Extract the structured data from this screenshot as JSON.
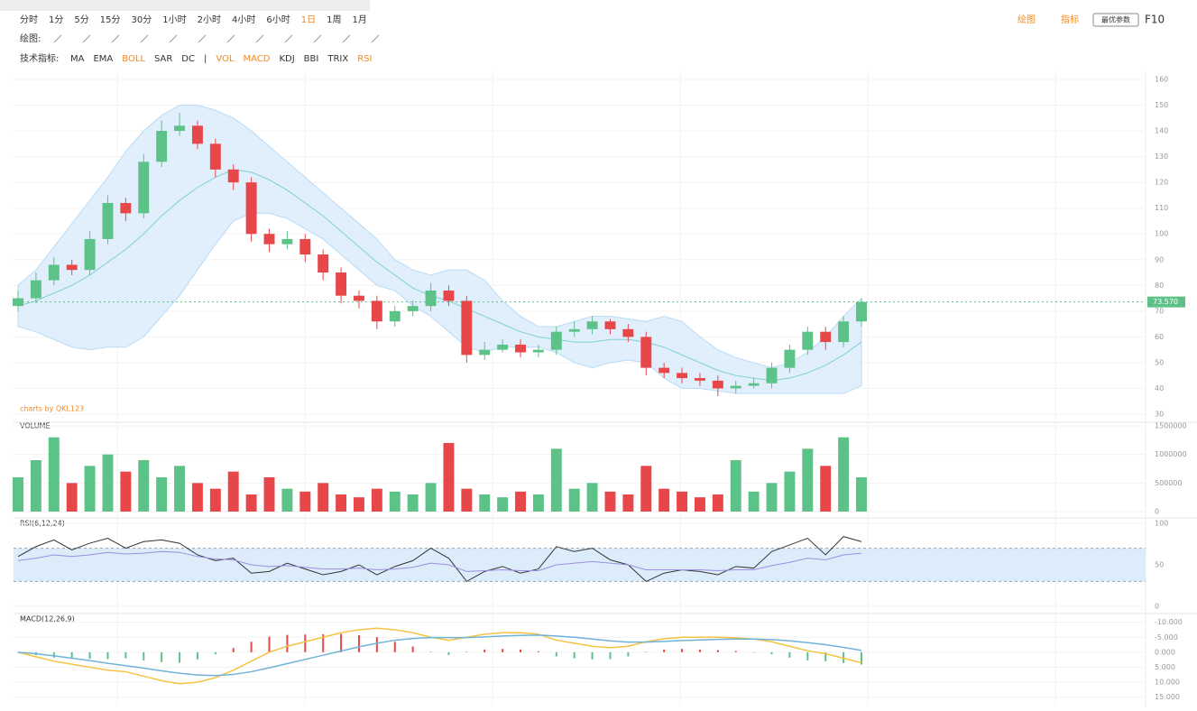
{
  "toolbar": {
    "timeframes": [
      "分时",
      "1分",
      "5分",
      "15分",
      "30分",
      "1小时",
      "2小时",
      "4小时",
      "6小时",
      "1日",
      "1周",
      "1月"
    ],
    "active_timeframe": 9,
    "draw_label": "绘图:",
    "indicator_label": "技术指标:",
    "indicators": [
      {
        "label": "MA",
        "active": false
      },
      {
        "label": "EMA",
        "active": false
      },
      {
        "label": "BOLL",
        "active": true
      },
      {
        "label": "SAR",
        "active": false
      },
      {
        "label": "DC",
        "active": false
      },
      {
        "label": "|",
        "active": false
      },
      {
        "label": "VOL",
        "active": true
      },
      {
        "label": "MACD",
        "active": true
      },
      {
        "label": "KDJ",
        "active": false
      },
      {
        "label": "BBI",
        "active": false
      },
      {
        "label": "TRIX",
        "active": false
      },
      {
        "label": "RSI",
        "active": true
      }
    ],
    "right_draw": "绘图",
    "right_indicator": "指标",
    "right_params": "最优参数",
    "right_f10": "F10"
  },
  "chart_data": {
    "type": "candlestick",
    "watermark": "charts by QKL123",
    "up_color": "#5cc287",
    "down_color": "#e8474a",
    "ylim": [
      30,
      160
    ],
    "yticks": [
      30,
      40,
      50,
      60,
      70,
      80,
      90,
      100,
      110,
      120,
      130,
      140,
      150,
      160
    ],
    "last_price": 73.57,
    "last_price_label": "73.570",
    "open": [
      72,
      75,
      82,
      88,
      86,
      98,
      112,
      108,
      128,
      140,
      142,
      135,
      125,
      120,
      100,
      96,
      98,
      92,
      85,
      76,
      74,
      66,
      70,
      72,
      78,
      74,
      53,
      55,
      57,
      54,
      55,
      62,
      63,
      66,
      63,
      60,
      48,
      46,
      44,
      43,
      40,
      41,
      42,
      48,
      55,
      62,
      58,
      66
    ],
    "high": [
      78,
      85,
      91,
      90,
      101,
      115,
      114,
      131,
      144,
      147,
      144,
      137,
      127,
      122,
      102,
      101,
      100,
      94,
      87,
      78,
      76,
      72,
      74,
      81,
      80,
      76,
      58,
      59,
      59,
      57,
      64,
      66,
      68,
      67,
      65,
      62,
      50,
      48,
      46,
      45,
      43,
      44,
      50,
      57,
      64,
      64,
      68,
      75
    ],
    "low": [
      70,
      73,
      80,
      84,
      84,
      96,
      105,
      106,
      126,
      138,
      133,
      122,
      117,
      97,
      93,
      94,
      89,
      82,
      73,
      71,
      63,
      64,
      68,
      70,
      72,
      50,
      51,
      54,
      52,
      52,
      53,
      60,
      61,
      61,
      58,
      45,
      44,
      42,
      41,
      37,
      38,
      40,
      40,
      46,
      53,
      55,
      56,
      64
    ],
    "close": [
      75,
      82,
      88,
      86,
      98,
      112,
      108,
      128,
      140,
      142,
      135,
      125,
      120,
      100,
      96,
      98,
      92,
      85,
      76,
      74,
      66,
      70,
      72,
      78,
      74,
      53,
      55,
      57,
      54,
      55,
      62,
      63,
      66,
      63,
      60,
      48,
      46,
      44,
      43,
      40,
      41,
      42,
      48,
      55,
      62,
      58,
      66,
      73.57
    ],
    "boll": {
      "upper": [
        80,
        86,
        95,
        104,
        113,
        122,
        132,
        140,
        146,
        150,
        150,
        148,
        145,
        140,
        134,
        128,
        122,
        116,
        110,
        104,
        98,
        90,
        86,
        84,
        86,
        86,
        82,
        74,
        68,
        64,
        64,
        66,
        68,
        68,
        67,
        66,
        68,
        66,
        60,
        55,
        52,
        50,
        48,
        50,
        54,
        60,
        68,
        75
      ],
      "mid": [
        72,
        74,
        77,
        80,
        84,
        89,
        94,
        100,
        107,
        113,
        118,
        122,
        125,
        124,
        121,
        117,
        112,
        107,
        101,
        95,
        89,
        84,
        79,
        76,
        74,
        71,
        68,
        65,
        62,
        60,
        59,
        58,
        58,
        59,
        59,
        58,
        56,
        53,
        50,
        47,
        45,
        44,
        43,
        44,
        46,
        49,
        53,
        58
      ],
      "lower": [
        64,
        62,
        59,
        56,
        55,
        56,
        56,
        60,
        68,
        76,
        86,
        96,
        105,
        108,
        108,
        106,
        102,
        98,
        92,
        86,
        80,
        78,
        72,
        68,
        62,
        56,
        54,
        56,
        56,
        56,
        54,
        50,
        48,
        50,
        51,
        50,
        44,
        40,
        40,
        39,
        38,
        38,
        38,
        38,
        38,
        38,
        38,
        41
      ]
    },
    "volume_title": "VOLUME",
    "volume_ylim": [
      0,
      1500000
    ],
    "volume_yticks": [
      0,
      500000,
      1000000,
      1500000
    ],
    "volume": [
      600000,
      900000,
      1300000,
      500000,
      800000,
      1000000,
      700000,
      900000,
      600000,
      800000,
      500000,
      400000,
      700000,
      300000,
      600000,
      400000,
      350000,
      500000,
      300000,
      250000,
      400000,
      350000,
      300000,
      500000,
      1200000,
      400000,
      300000,
      250000,
      350000,
      300000,
      1100000,
      400000,
      500000,
      350000,
      300000,
      800000,
      400000,
      350000,
      250000,
      300000,
      900000,
      350000,
      500000,
      700000,
      1100000,
      800000,
      1300000,
      600000
    ],
    "rsi_title": "RSI(6,12,24)",
    "rsi_ylim": [
      0,
      100
    ],
    "rsi_yticks": [
      0,
      50,
      100
    ],
    "rsi_band": [
      30,
      70
    ],
    "rsi": [
      {
        "color": "#333333",
        "values": [
          60,
          72,
          80,
          68,
          76,
          82,
          70,
          78,
          80,
          76,
          62,
          55,
          58,
          40,
          42,
          52,
          45,
          38,
          42,
          50,
          38,
          48,
          55,
          70,
          58,
          30,
          42,
          48,
          40,
          45,
          72,
          66,
          70,
          56,
          50,
          30,
          40,
          44,
          42,
          38,
          48,
          46,
          66,
          74,
          82,
          62,
          84,
          78
        ]
      },
      {
        "color": "#9b8fe0",
        "values": [
          55,
          58,
          62,
          60,
          62,
          65,
          63,
          64,
          66,
          65,
          60,
          57,
          56,
          50,
          48,
          49,
          47,
          45,
          45,
          46,
          44,
          45,
          47,
          52,
          50,
          42,
          43,
          44,
          43,
          43,
          50,
          52,
          54,
          52,
          50,
          44,
          44,
          44,
          44,
          43,
          44,
          44,
          49,
          53,
          58,
          56,
          62,
          64
        ]
      }
    ],
    "macd_title": "MACD(12,26,9)",
    "macd_ylim": [
      -12,
      16
    ],
    "macd_yticks": [
      {
        "value": -10,
        "label": "-10.000"
      },
      {
        "value": -5,
        "label": "-5.000"
      },
      {
        "value": 0,
        "label": "0.000"
      },
      {
        "value": 5,
        "label": "5.000"
      },
      {
        "value": 10,
        "label": "10.000"
      },
      {
        "value": 15,
        "label": "15.000"
      }
    ],
    "dif": {
      "color": "#f5c342",
      "values": [
        0,
        1.5,
        3,
        4,
        5,
        6,
        6.5,
        8,
        9.5,
        10.5,
        10,
        8.5,
        6,
        3,
        0,
        -2,
        -3.5,
        -5,
        -6.5,
        -7.5,
        -8,
        -7.5,
        -6.5,
        -5,
        -4,
        -5,
        -6,
        -6.5,
        -6.5,
        -6,
        -4,
        -3,
        -2,
        -1.5,
        -2,
        -3.5,
        -4.5,
        -5,
        -5,
        -5,
        -4.8,
        -4.4,
        -3.5,
        -2,
        -0.5,
        0.5,
        2,
        3.5
      ]
    },
    "dea": {
      "color": "#6fb3d9",
      "values": [
        0,
        0.5,
        1.2,
        2,
        2.8,
        3.7,
        4.5,
        5.3,
        6.2,
        7,
        7.6,
        7.8,
        7.4,
        6.5,
        5.2,
        3.8,
        2.4,
        1,
        -0.4,
        -1.8,
        -3,
        -4,
        -4.6,
        -4.9,
        -4.9,
        -4.9,
        -5.1,
        -5.4,
        -5.6,
        -5.7,
        -5.4,
        -5,
        -4.4,
        -3.8,
        -3.4,
        -3.4,
        -3.6,
        -3.9,
        -4.1,
        -4.3,
        -4.4,
        -4.4,
        -4.2,
        -3.8,
        -3.2,
        -2.5,
        -1.6,
        -0.6
      ]
    },
    "hist": [
      0,
      1,
      1.8,
      2,
      2.2,
      2.3,
      2,
      2.7,
      3.3,
      3.5,
      2.4,
      0.7,
      -1.4,
      -3.5,
      -5.2,
      -5.8,
      -5.9,
      -6,
      -6.1,
      -5.7,
      -5,
      -3.5,
      -1.9,
      -0.1,
      0.9,
      -0.1,
      -0.9,
      -1.1,
      -0.9,
      -0.3,
      1.4,
      2,
      2.4,
      2.3,
      1.4,
      -0.1,
      -0.9,
      -1.1,
      -0.9,
      -0.7,
      -0.4,
      0,
      0.7,
      1.8,
      2.7,
      3,
      3.6,
      4.1
    ]
  }
}
